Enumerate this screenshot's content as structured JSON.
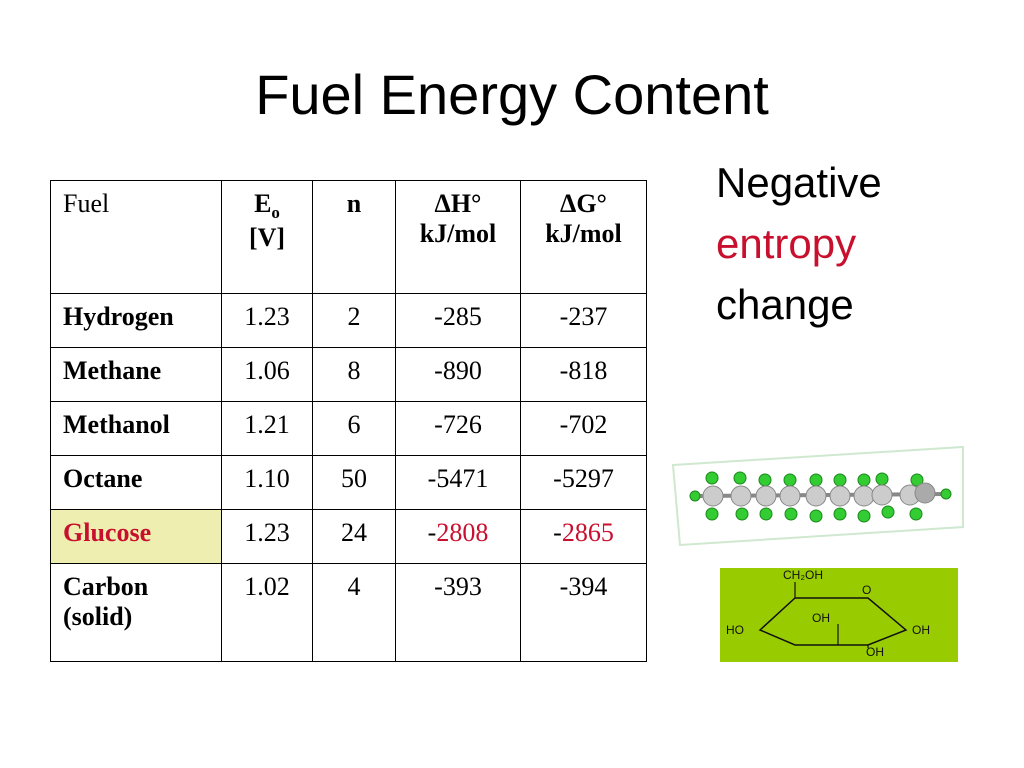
{
  "title": "Fuel Energy Content",
  "note": {
    "lines": [
      "Negative",
      "entropy",
      "change"
    ],
    "highlight_line": 1,
    "highlight_color": "#c8102e"
  },
  "table": {
    "header": [
      "Fuel",
      {
        "main": "E",
        "sub": "o",
        "unit": "[V]"
      },
      "n",
      {
        "main": "ΔH°",
        "unit": "kJ/mol"
      },
      {
        "main": "ΔG°",
        "unit": "kJ/mol"
      }
    ],
    "rows": [
      [
        "Hydrogen",
        "1.23",
        "2",
        "-285",
        "-237"
      ],
      [
        "Methane",
        "1.06",
        "8",
        "-890",
        "-818"
      ],
      [
        "Methanol",
        "1.21",
        "6",
        "-726",
        "-702"
      ],
      [
        "Octane",
        "1.10",
        "50",
        "-5471",
        "-5297"
      ],
      [
        "Glucose",
        "1.23",
        "24",
        [
          "-",
          "2808"
        ],
        [
          "-",
          "2865"
        ]
      ],
      [
        "Carbon (solid)",
        "1.02",
        "4",
        "-393",
        "-394"
      ]
    ],
    "highlight_row": 4,
    "highlight_color": "#c8102e",
    "highlight_fill": "#eeeeb0"
  },
  "glucose_structure": {
    "labels": [
      "CH₂OH",
      "O",
      "HO",
      "OH",
      "OH",
      "OH"
    ]
  }
}
